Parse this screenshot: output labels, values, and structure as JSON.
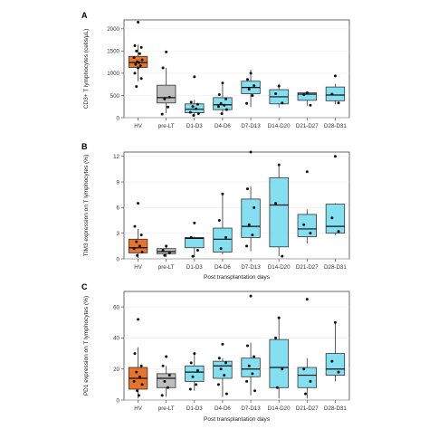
{
  "chart_data": [
    {
      "panel_label": "A",
      "type": "boxplot",
      "ylabel": "CD3+ T lymphocytes (cells/μL)",
      "xlabel": "",
      "categories": [
        "HV",
        "pre-LT",
        "D1-D3",
        "D4-D6",
        "D7-D13",
        "D14-D20",
        "D21-D27",
        "D28-D31"
      ],
      "ylim": [
        0,
        2200
      ],
      "yticks": [
        0,
        500,
        1000,
        1500,
        2000
      ],
      "ytick_labels": [
        "0",
        "500",
        "1000",
        "1500",
        "2000"
      ],
      "boxes": [
        {
          "category": "HV",
          "whisker_low": 820,
          "q1": 1130,
          "median": 1240,
          "q3": 1380,
          "whisker_high": 1640,
          "color": "#e8732a",
          "points": [
            2150,
            1620,
            1580,
            1500,
            1440,
            1350,
            1300,
            1260,
            1240,
            1200,
            1170,
            1120,
            1000,
            880,
            700
          ]
        },
        {
          "category": "pre-LT",
          "whisker_low": 100,
          "q1": 330,
          "median": 450,
          "q3": 730,
          "whisker_high": 1120,
          "color": "#bdbdbd",
          "points": [
            1480,
            1120,
            460,
            420,
            240,
            80
          ]
        },
        {
          "category": "D1-D3",
          "whisker_low": 50,
          "q1": 110,
          "median": 190,
          "q3": 310,
          "whisker_high": 400,
          "color": "#84dff0",
          "points": [
            920,
            350,
            300,
            250,
            200,
            120,
            90,
            50
          ]
        },
        {
          "category": "D4-D6",
          "whisker_low": 60,
          "q1": 180,
          "median": 290,
          "q3": 450,
          "whisker_high": 780,
          "color": "#84dff0",
          "points": [
            780,
            520,
            420,
            320,
            280,
            250,
            180,
            90
          ]
        },
        {
          "category": "D7-D13",
          "whisker_low": 240,
          "q1": 540,
          "median": 680,
          "q3": 820,
          "whisker_high": 1080,
          "color": "#84dff0",
          "points": [
            1000,
            860,
            720,
            640,
            500,
            320
          ]
        },
        {
          "category": "D14-D20",
          "whisker_low": 230,
          "q1": 310,
          "median": 470,
          "q3": 630,
          "whisker_high": 760,
          "color": "#84dff0",
          "points": [
            710,
            540,
            330
          ]
        },
        {
          "category": "D21-D27",
          "whisker_low": 270,
          "q1": 390,
          "median": 530,
          "q3": 560,
          "whisker_high": 570,
          "color": "#84dff0",
          "points": [
            560,
            520,
            280
          ]
        },
        {
          "category": "D28-D31",
          "whisker_low": 300,
          "q1": 380,
          "median": 510,
          "q3": 690,
          "whisker_high": 760,
          "color": "#84dff0",
          "points": [
            940,
            530,
            330
          ]
        }
      ]
    },
    {
      "panel_label": "B",
      "type": "boxplot",
      "ylabel": "TIM3 expression on T lymphocytes (%)",
      "xlabel": "Post transplantation days",
      "categories": [
        "HV",
        "pre-LT",
        "D1-D3",
        "D4-D6",
        "D7-D13",
        "D14-D20",
        "D21-D27",
        "D28-D31"
      ],
      "ylim": [
        0,
        12.5
      ],
      "yticks": [
        0,
        3,
        6,
        9,
        12
      ],
      "ytick_labels": [
        "0",
        "3",
        "6",
        "9",
        "12"
      ],
      "boxes": [
        {
          "category": "HV",
          "whisker_low": 0.1,
          "q1": 0.7,
          "median": 1.3,
          "q3": 2.3,
          "whisker_high": 3.5,
          "color": "#e8732a",
          "points": [
            6.5,
            3.8,
            2.8,
            2.0,
            1.5,
            1.2,
            0.8,
            0.4
          ]
        },
        {
          "category": "pre-LT",
          "whisker_low": 0.2,
          "q1": 0.6,
          "median": 0.85,
          "q3": 1.2,
          "whisker_high": 1.6,
          "color": "#bdbdbd",
          "points": [
            1.5,
            1.0,
            0.7,
            0.4
          ]
        },
        {
          "category": "D1-D3",
          "whisker_low": 0.2,
          "q1": 1.3,
          "median": 2.4,
          "q3": 2.5,
          "whisker_high": 2.6,
          "color": "#84dff0",
          "points": [
            4.2,
            2.5,
            1.0,
            0.3
          ]
        },
        {
          "category": "D4-D6",
          "whisker_low": 0.5,
          "q1": 0.8,
          "median": 2.3,
          "q3": 3.6,
          "whisker_high": 7.6,
          "color": "#84dff0",
          "points": [
            7.6,
            4.5,
            2.5,
            1.2
          ]
        },
        {
          "category": "D7-D13",
          "whisker_low": 0.9,
          "q1": 2.5,
          "median": 3.8,
          "q3": 7.0,
          "whisker_high": 8.5,
          "color": "#84dff0",
          "points": [
            12.5,
            8.2,
            6.0,
            4.0,
            2.8,
            1.5
          ]
        },
        {
          "category": "D14-D20",
          "whisker_low": 0.3,
          "q1": 1.4,
          "median": 6.3,
          "q3": 9.5,
          "whisker_high": 11.0,
          "color": "#84dff0",
          "points": [
            11.0,
            6.5,
            0.3
          ]
        },
        {
          "category": "D21-D27",
          "whisker_low": 1.8,
          "q1": 2.6,
          "median": 3.5,
          "q3": 5.2,
          "whisker_high": 5.8,
          "color": "#84dff0",
          "points": [
            10.2,
            4.0,
            3.0
          ]
        },
        {
          "category": "D28-D31",
          "whisker_low": 2.8,
          "q1": 3.0,
          "median": 3.8,
          "q3": 6.4,
          "whisker_high": 6.5,
          "color": "#84dff0",
          "points": [
            12.0,
            4.8,
            3.2
          ]
        }
      ]
    },
    {
      "panel_label": "C",
      "type": "boxplot",
      "ylabel": "PD1 expression on T lymphocytes (%)",
      "xlabel": "Post transplantation days",
      "categories": [
        "HV",
        "pre-LT",
        "D1-D3",
        "D4-D6",
        "D7-D13",
        "D14-D20",
        "D21-D27",
        "D28-D31"
      ],
      "ylim": [
        0,
        70
      ],
      "yticks": [
        0,
        20,
        40,
        60
      ],
      "ytick_labels": [
        "0",
        "20",
        "40",
        "60"
      ],
      "boxes": [
        {
          "category": "HV",
          "whisker_low": 1,
          "q1": 7,
          "median": 14,
          "q3": 21,
          "whisker_high": 34,
          "color": "#e8732a",
          "points": [
            52,
            30,
            22,
            18,
            15,
            12,
            10,
            6,
            3
          ]
        },
        {
          "category": "pre-LT",
          "whisker_low": 2,
          "q1": 8,
          "median": 14,
          "q3": 17,
          "whisker_high": 22,
          "color": "#bdbdbd",
          "points": [
            28,
            22,
            16,
            12,
            8,
            3
          ]
        },
        {
          "category": "D1-D3",
          "whisker_low": 6,
          "q1": 12,
          "median": 18,
          "q3": 22,
          "whisker_high": 30,
          "color": "#84dff0",
          "points": [
            30,
            24,
            19,
            15,
            10,
            7
          ]
        },
        {
          "category": "D4-D6",
          "whisker_low": 2,
          "q1": 14,
          "median": 22,
          "q3": 25,
          "whisker_high": 27,
          "color": "#84dff0",
          "points": [
            36,
            27,
            24,
            20,
            16,
            10,
            4
          ]
        },
        {
          "category": "D7-D13",
          "whisker_low": 3,
          "q1": 15,
          "median": 20,
          "q3": 27,
          "whisker_high": 37,
          "color": "#84dff0",
          "points": [
            67,
            35,
            28,
            22,
            17,
            12,
            6
          ]
        },
        {
          "category": "D14-D20",
          "whisker_low": 1,
          "q1": 8,
          "median": 21,
          "q3": 39,
          "whisker_high": 53,
          "color": "#84dff0",
          "points": [
            53,
            40,
            20,
            8
          ]
        },
        {
          "category": "D21-D27",
          "whisker_low": 1,
          "q1": 8,
          "median": 16,
          "q3": 21,
          "whisker_high": 27,
          "color": "#84dff0",
          "points": [
            65,
            20,
            12,
            4
          ]
        },
        {
          "category": "D28-D31",
          "whisker_low": 12,
          "q1": 16,
          "median": 20,
          "q3": 30,
          "whisker_high": 50,
          "color": "#84dff0",
          "points": [
            50,
            25,
            18
          ]
        }
      ]
    }
  ]
}
